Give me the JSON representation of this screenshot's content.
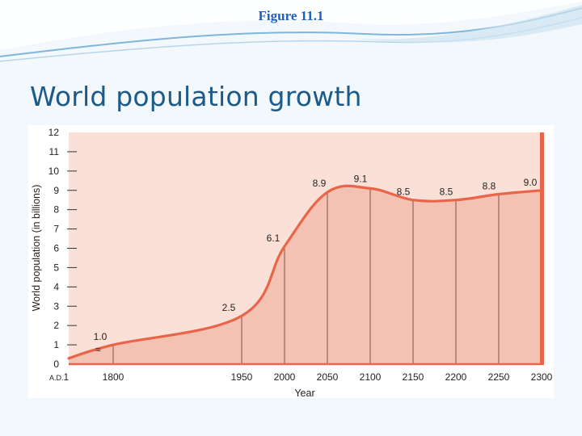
{
  "slide": {
    "figure_label": "Figure 11.1",
    "title": "World population growth"
  },
  "colors": {
    "background": "#f3f8fc",
    "title": "#1b5a89",
    "figure_label": "#1f5fbf",
    "plot_background": "#fbe0d7",
    "area_fill": "#f3c2b2",
    "curve": "#e8654a"
  },
  "chart_data": {
    "type": "area",
    "title": "",
    "xlabel": "Year",
    "ylabel": "World population (in billions)",
    "ylim": [
      0,
      12
    ],
    "yticks": [
      "0",
      "1",
      "2",
      "3",
      "4",
      "5",
      "6",
      "7",
      "8",
      "9",
      "10",
      "11",
      "12"
    ],
    "xticks": [
      {
        "year": 1,
        "label": "A.D.1"
      },
      {
        "year": 1800,
        "label": "1800"
      },
      {
        "year": 1950,
        "label": "1950"
      },
      {
        "year": 2000,
        "label": "2000"
      },
      {
        "year": 2050,
        "label": "2050"
      },
      {
        "year": 2100,
        "label": "2100"
      },
      {
        "year": 2150,
        "label": "2150"
      },
      {
        "year": 2200,
        "label": "2200"
      },
      {
        "year": 2250,
        "label": "2250"
      },
      {
        "year": 2300,
        "label": "2300"
      }
    ],
    "axis_break": "≈",
    "points": [
      {
        "year": 1800,
        "value": 1.0,
        "label": "1.0"
      },
      {
        "year": 1950,
        "value": 2.5,
        "label": "2.5"
      },
      {
        "year": 2000,
        "value": 6.1,
        "label": "6.1"
      },
      {
        "year": 2050,
        "value": 8.9,
        "label": "8.9"
      },
      {
        "year": 2100,
        "value": 9.1,
        "label": "9.1"
      },
      {
        "year": 2150,
        "value": 8.5,
        "label": "8.5"
      },
      {
        "year": 2200,
        "value": 8.5,
        "label": "8.5"
      },
      {
        "year": 2250,
        "value": 8.8,
        "label": "8.8"
      },
      {
        "year": 2300,
        "value": 9.0,
        "label": "9.0"
      }
    ],
    "start_value": 0.3,
    "grid": false
  }
}
